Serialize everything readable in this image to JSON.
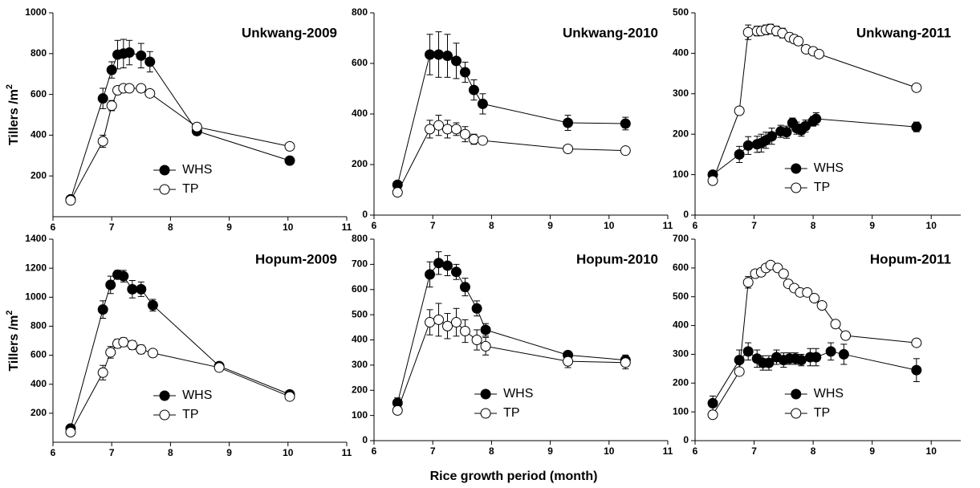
{
  "xlabel": "Rice growth period (month)",
  "chart_data": [
    {
      "type": "line",
      "title": "Unkwang-2009",
      "ylabel": "Tillers /m",
      "ylabel_sup": "2",
      "xlim": [
        6,
        11
      ],
      "xticks": [
        6,
        7,
        8,
        9,
        10,
        11
      ],
      "ylim": [
        0,
        1000
      ],
      "yticks": [
        200,
        400,
        600,
        800,
        1000
      ],
      "legend": "lower center",
      "series": [
        {
          "name": "WHS",
          "color": "#000000",
          "marker": "filled",
          "x": [
            6.3,
            6.85,
            7.0,
            7.1,
            7.2,
            7.3,
            7.5,
            7.65,
            8.45,
            10.03
          ],
          "values": [
            85,
            580,
            720,
            795,
            800,
            805,
            790,
            760,
            420,
            275
          ],
          "errors": [
            null,
            50,
            40,
            70,
            70,
            60,
            60,
            50,
            20,
            null
          ]
        },
        {
          "name": "TP",
          "color": "#000000",
          "marker": "open",
          "x": [
            6.3,
            6.85,
            7.0,
            7.1,
            7.2,
            7.3,
            7.5,
            7.65,
            8.45,
            10.03
          ],
          "values": [
            80,
            370,
            545,
            620,
            630,
            630,
            630,
            605,
            440,
            345
          ],
          "errors": [
            null,
            30,
            25,
            20,
            15,
            null,
            15,
            null,
            20,
            null
          ]
        }
      ]
    },
    {
      "type": "line",
      "title": "Unkwang-2010",
      "xlim": [
        6,
        11
      ],
      "xticks": [
        6,
        7,
        8,
        9,
        10,
        11
      ],
      "ylim": [
        0,
        800
      ],
      "yticks": [
        0,
        200,
        400,
        600,
        800
      ],
      "series": [
        {
          "color": "#000000",
          "marker": "filled",
          "x": [
            6.4,
            6.95,
            7.1,
            7.25,
            7.4,
            7.55,
            7.7,
            7.85,
            9.3,
            10.28
          ],
          "values": [
            120,
            635,
            635,
            630,
            610,
            565,
            495,
            440,
            365,
            362
          ],
          "errors": [
            null,
            80,
            90,
            85,
            70,
            40,
            40,
            40,
            30,
            25
          ]
        },
        {
          "color": "#000000",
          "marker": "open",
          "x": [
            6.4,
            6.95,
            7.1,
            7.25,
            7.4,
            7.55,
            7.7,
            7.85,
            9.3,
            10.28
          ],
          "values": [
            90,
            340,
            355,
            340,
            340,
            320,
            300,
            295,
            262,
            255
          ],
          "errors": [
            null,
            35,
            40,
            35,
            25,
            30,
            20,
            null,
            null,
            null
          ]
        }
      ]
    },
    {
      "type": "line",
      "title": "Unkwang-2011",
      "xlim": [
        6,
        10.5
      ],
      "xticks": [
        6,
        7,
        8,
        9,
        10
      ],
      "ylim": [
        0,
        500
      ],
      "yticks": [
        0,
        100,
        200,
        300,
        400,
        500
      ],
      "legend": "lower center",
      "series": [
        {
          "name": "WHS",
          "color": "#000000",
          "marker": "filled",
          "x": [
            6.3,
            6.75,
            6.9,
            7.05,
            7.12,
            7.2,
            7.3,
            7.45,
            7.55,
            7.65,
            7.72,
            7.8,
            7.87,
            8.0,
            8.05,
            9.75
          ],
          "values": [
            100,
            150,
            172,
            175,
            178,
            185,
            195,
            207,
            205,
            228,
            215,
            210,
            220,
            232,
            238,
            218
          ],
          "errors": [
            null,
            20,
            22,
            20,
            22,
            20,
            20,
            15,
            15,
            12,
            15,
            15,
            15,
            12,
            15,
            12
          ]
        },
        {
          "name": "TP",
          "color": "#000000",
          "marker": "open",
          "x": [
            6.3,
            6.75,
            6.9,
            7.05,
            7.12,
            7.2,
            7.28,
            7.38,
            7.48,
            7.6,
            7.68,
            7.75,
            7.88,
            8.0,
            8.1,
            9.75
          ],
          "values": [
            85,
            258,
            452,
            455,
            455,
            458,
            460,
            455,
            450,
            440,
            435,
            430,
            410,
            405,
            398,
            315
          ],
          "errors": [
            null,
            null,
            18,
            12,
            10,
            12,
            12,
            12,
            12,
            10,
            10,
            10,
            null,
            null,
            null,
            null
          ]
        }
      ]
    },
    {
      "type": "line",
      "title": "Hopum-2009",
      "ylabel": "Tillers /m",
      "ylabel_sup": "2",
      "xlim": [
        6,
        11
      ],
      "xticks": [
        6,
        7,
        8,
        9,
        10,
        11
      ],
      "ylim": [
        0,
        1400
      ],
      "yticks": [
        200,
        400,
        600,
        800,
        1000,
        1200,
        1400
      ],
      "legend": "lower center",
      "series": [
        {
          "name": "WHS",
          "color": "#000000",
          "marker": "filled",
          "x": [
            6.3,
            6.85,
            6.98,
            7.1,
            7.2,
            7.35,
            7.5,
            7.7,
            8.83,
            10.03
          ],
          "values": [
            95,
            915,
            1085,
            1155,
            1145,
            1055,
            1055,
            945,
            525,
            330
          ],
          "errors": [
            null,
            60,
            60,
            30,
            40,
            60,
            50,
            40,
            20,
            15
          ]
        },
        {
          "name": "TP",
          "color": "#000000",
          "marker": "open",
          "x": [
            6.3,
            6.85,
            6.98,
            7.1,
            7.2,
            7.35,
            7.5,
            7.7,
            8.83,
            10.03
          ],
          "values": [
            70,
            480,
            620,
            680,
            690,
            670,
            640,
            615,
            515,
            315
          ],
          "errors": [
            null,
            50,
            40,
            30,
            30,
            30,
            30,
            null,
            null,
            null
          ]
        }
      ]
    },
    {
      "type": "line",
      "title": "Hopum-2010",
      "xlim": [
        6,
        11
      ],
      "xticks": [
        6,
        7,
        8,
        9,
        10,
        11
      ],
      "ylim": [
        0,
        800
      ],
      "yticks": [
        0,
        100,
        200,
        300,
        400,
        500,
        600,
        700,
        800
      ],
      "legend": "lower center",
      "series": [
        {
          "name": "WHS",
          "color": "#000000",
          "marker": "filled",
          "x": [
            6.4,
            6.95,
            7.1,
            7.25,
            7.4,
            7.55,
            7.75,
            7.9,
            9.3,
            10.28
          ],
          "values": [
            150,
            660,
            705,
            695,
            670,
            610,
            525,
            440,
            340,
            320
          ],
          "errors": [
            20,
            50,
            45,
            40,
            30,
            35,
            30,
            25,
            15,
            20
          ]
        },
        {
          "name": "TP",
          "color": "#000000",
          "marker": "open",
          "x": [
            6.4,
            6.95,
            7.1,
            7.25,
            7.4,
            7.55,
            7.75,
            7.9,
            9.3,
            10.28
          ],
          "values": [
            120,
            470,
            480,
            455,
            470,
            435,
            400,
            375,
            315,
            310
          ],
          "errors": [
            null,
            50,
            65,
            50,
            55,
            45,
            40,
            35,
            25,
            25
          ]
        }
      ]
    },
    {
      "type": "line",
      "title": "Hopum-2011",
      "xlim": [
        6,
        10.5
      ],
      "xticks": [
        6,
        7,
        8,
        9,
        10
      ],
      "ylim": [
        0,
        700
      ],
      "yticks": [
        0,
        100,
        200,
        300,
        400,
        500,
        600,
        700
      ],
      "legend": "lower center",
      "series": [
        {
          "name": "WHS",
          "color": "#000000",
          "marker": "filled",
          "x": [
            6.3,
            6.75,
            6.9,
            7.05,
            7.15,
            7.25,
            7.38,
            7.5,
            7.6,
            7.7,
            7.8,
            7.95,
            8.05,
            8.3,
            8.52,
            9.75
          ],
          "values": [
            130,
            280,
            310,
            285,
            270,
            270,
            290,
            280,
            285,
            285,
            280,
            290,
            290,
            310,
            300,
            245
          ],
          "errors": [
            25,
            35,
            30,
            30,
            25,
            25,
            25,
            25,
            20,
            20,
            20,
            30,
            30,
            30,
            35,
            40
          ]
        },
        {
          "name": "TP",
          "color": "#000000",
          "marker": "open",
          "x": [
            6.3,
            6.75,
            6.9,
            7.02,
            7.12,
            7.2,
            7.28,
            7.4,
            7.5,
            7.58,
            7.68,
            7.78,
            7.9,
            8.02,
            8.15,
            8.38,
            8.55,
            9.75
          ],
          "values": [
            90,
            240,
            550,
            580,
            585,
            600,
            610,
            600,
            580,
            545,
            530,
            515,
            515,
            495,
            470,
            405,
            365,
            340
          ],
          "errors": [
            null,
            null,
            20,
            null,
            null,
            null,
            null,
            null,
            null,
            null,
            null,
            null,
            null,
            null,
            null,
            null,
            null,
            null
          ]
        }
      ]
    }
  ]
}
